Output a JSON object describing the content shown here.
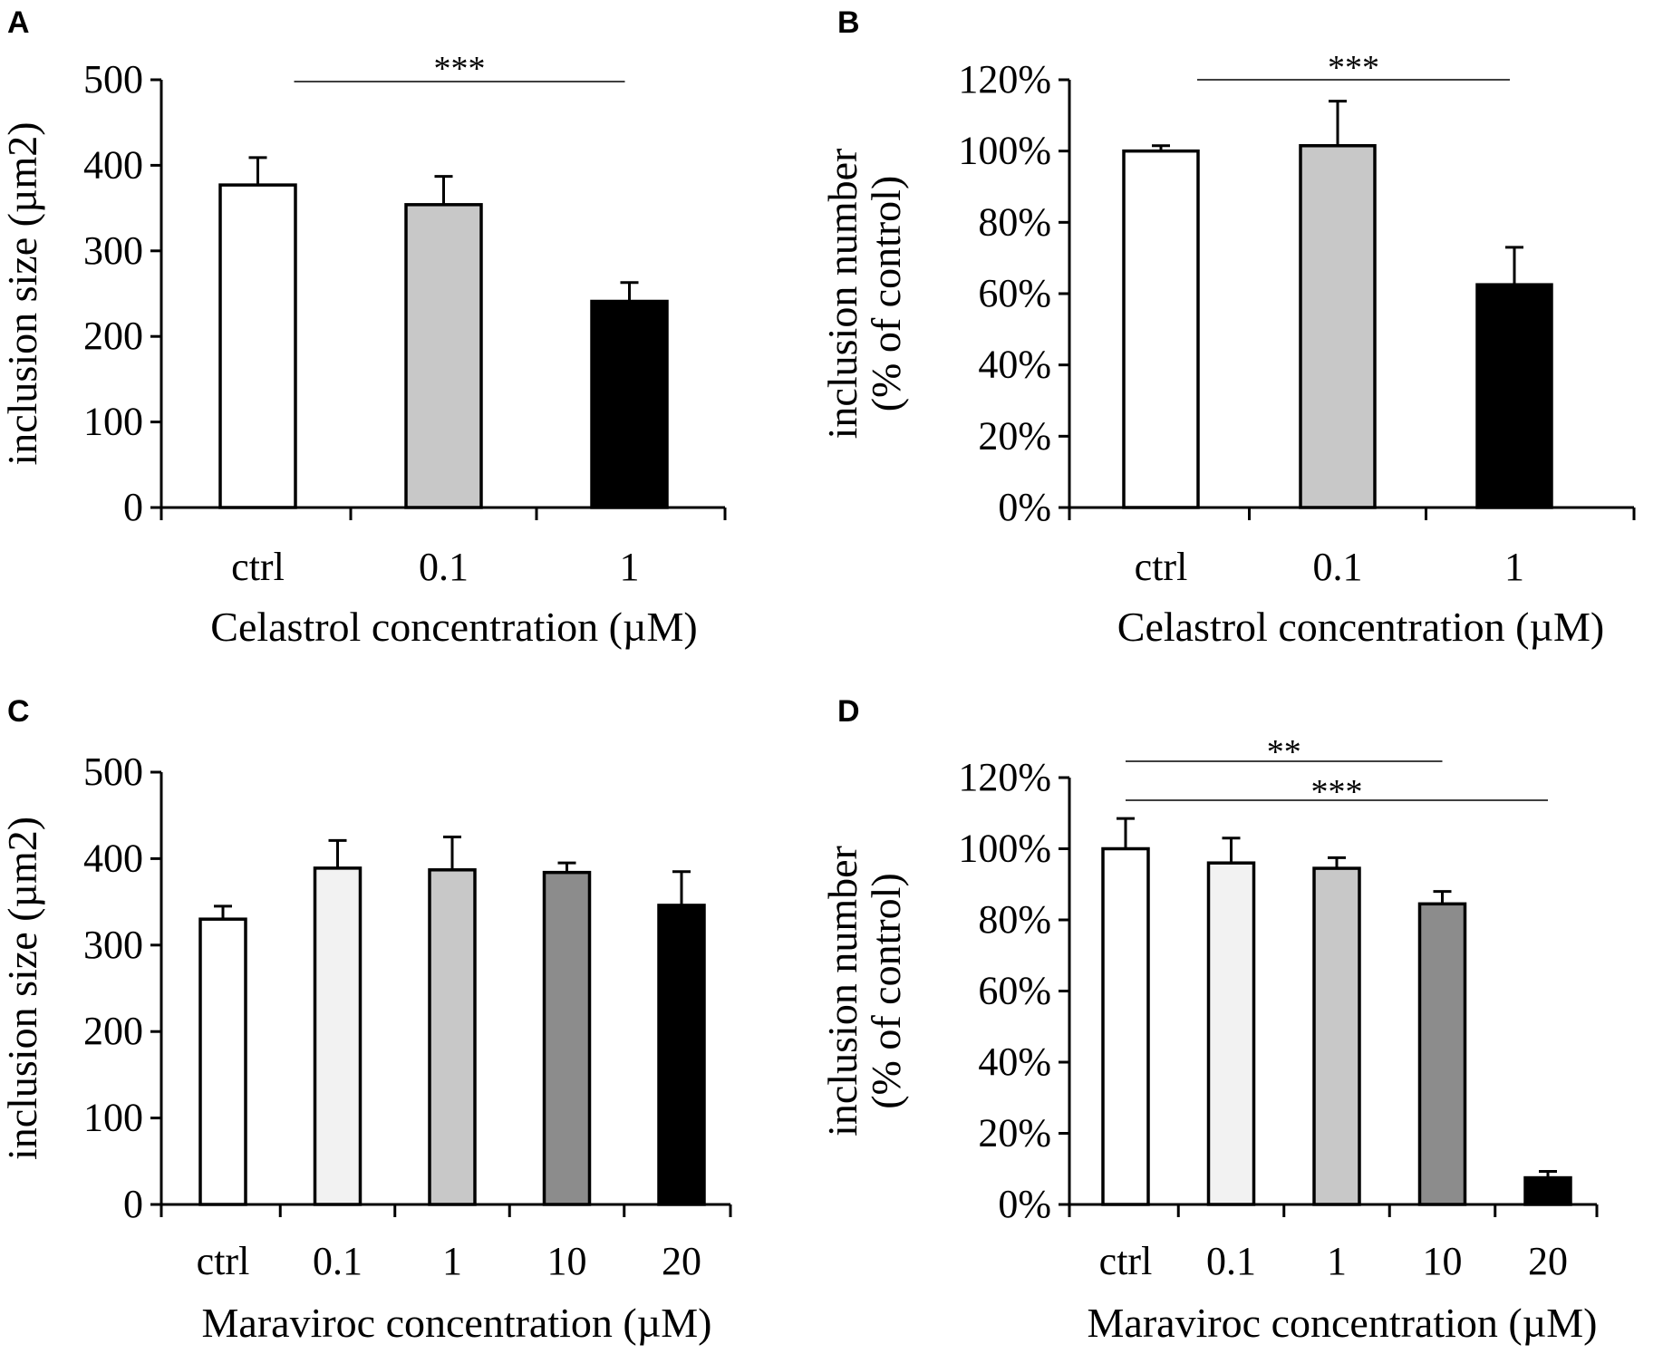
{
  "chart_data": [
    {
      "panel": "A",
      "type": "bar",
      "categories": [
        "ctrl",
        "0.1",
        "1"
      ],
      "values": [
        377,
        354,
        241
      ],
      "errors": [
        32,
        33,
        22
      ],
      "colors": [
        "#ffffff",
        "#c8c8c8",
        "#000000"
      ],
      "ylim": [
        0,
        500
      ],
      "yticks": [
        "0",
        "100",
        "200",
        "300",
        "400",
        "500"
      ],
      "ylabel": [
        "inclusion size (µm2)"
      ],
      "xlabel": "Celastrol concentration (µM)",
      "significance": [
        {
          "from": 0,
          "to": 2,
          "label": "***"
        }
      ]
    },
    {
      "panel": "B",
      "type": "bar",
      "categories": [
        "ctrl",
        "0.1",
        "1"
      ],
      "values": [
        100,
        101.5,
        62.5
      ],
      "errors": [
        1.5,
        12.5,
        10.5
      ],
      "colors": [
        "#ffffff",
        "#c8c8c8",
        "#000000"
      ],
      "ylim": [
        0,
        120
      ],
      "yticks": [
        "0%",
        "20%",
        "40%",
        "60%",
        "80%",
        "100%",
        "120%"
      ],
      "ylabel": [
        "inclusion number",
        "(% of control)"
      ],
      "xlabel": "Celastrol concentration (µM)",
      "significance": [
        {
          "from": 0,
          "to": 2,
          "label": "***"
        }
      ]
    },
    {
      "panel": "C",
      "type": "bar",
      "categories": [
        "ctrl",
        "0.1",
        "1",
        "10",
        "20"
      ],
      "values": [
        330,
        389,
        387,
        384,
        346
      ],
      "errors": [
        15,
        32,
        38,
        11,
        39
      ],
      "colors": [
        "#ffffff",
        "#f2f2f2",
        "#c8c8c8",
        "#8c8c8c",
        "#000000"
      ],
      "ylim": [
        0,
        500
      ],
      "yticks": [
        "0",
        "100",
        "200",
        "300",
        "400",
        "500"
      ],
      "ylabel": [
        "inclusion size (µm2)"
      ],
      "xlabel": "Maraviroc concentration (µM)",
      "significance": []
    },
    {
      "panel": "D",
      "type": "bar",
      "categories": [
        "ctrl",
        "0.1",
        "1",
        "10",
        "20"
      ],
      "values": [
        100,
        96,
        94.5,
        84.5,
        7.5
      ],
      "errors": [
        8.5,
        7,
        3,
        3.5,
        1.8
      ],
      "colors": [
        "#ffffff",
        "#f2f2f2",
        "#c8c8c8",
        "#8c8c8c",
        "#000000"
      ],
      "ylim": [
        0,
        120
      ],
      "yticks": [
        "0%",
        "20%",
        "40%",
        "60%",
        "80%",
        "100%",
        "120%"
      ],
      "ylabel": [
        "inclusion number",
        "(% of control)"
      ],
      "xlabel": "Maraviroc concentration (µM)",
      "significance": [
        {
          "from": 0,
          "to": 3,
          "label": "**"
        },
        {
          "from": 0,
          "to": 4,
          "label": "***"
        }
      ]
    }
  ]
}
